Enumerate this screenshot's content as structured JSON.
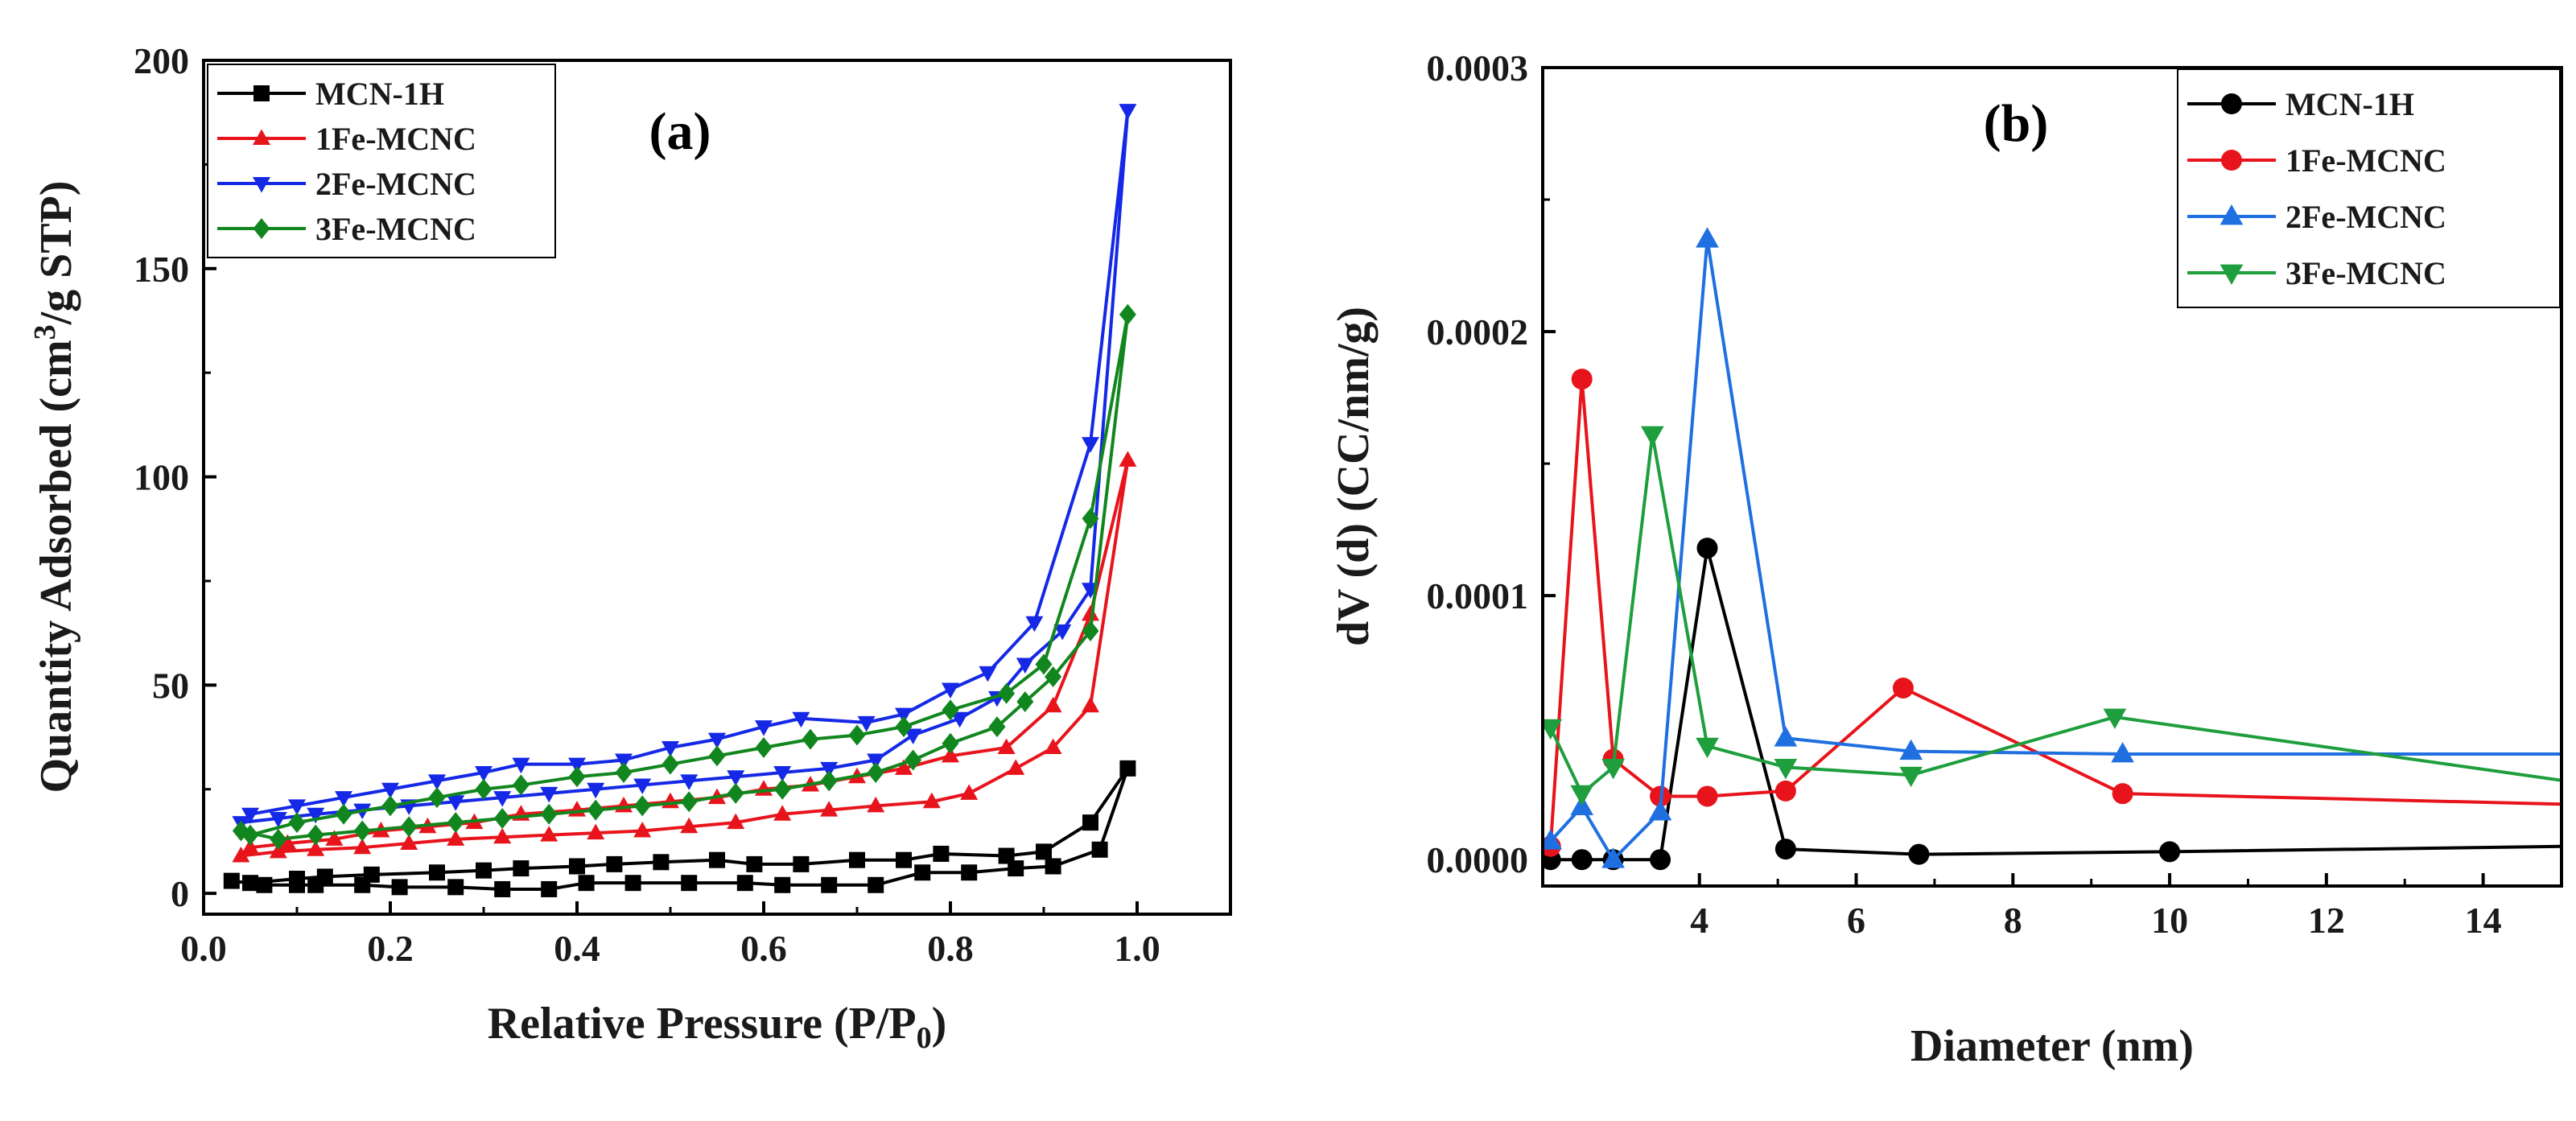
{
  "colors": {
    "black": "#000000",
    "red": "#e8141c",
    "blue": "#1428e6",
    "green": "#12861e",
    "blue_b": "#1f6fe0",
    "green_b": "#1e9e3c"
  },
  "chart_data": [
    {
      "type": "line",
      "panel_label": "(a)",
      "xlabel": "Relative Pressure (P/P",
      "xlabel_sub": "0",
      "xlabel_close": ")",
      "ylabel": "Quantity Adsorbed (cm",
      "ylabel_sup": "3",
      "ylabel_rest": "/g STP)",
      "xlim": [
        0.0,
        1.1
      ],
      "ylim": [
        -5,
        200
      ],
      "xticks": [
        0.0,
        0.2,
        0.4,
        0.6,
        0.8,
        1.0
      ],
      "xtick_labels": [
        "0.0",
        "0.2",
        "0.4",
        "0.6",
        "0.8",
        "1.0"
      ],
      "yticks": [
        0,
        50,
        100,
        150,
        200
      ],
      "ytick_labels": [
        "0",
        "50",
        "100",
        "150",
        "200"
      ],
      "legend_position": "top-left",
      "series": [
        {
          "name": "MCN-1H",
          "color": "black",
          "marker": "square",
          "x": [
            0.03,
            0.065,
            0.1,
            0.12,
            0.17,
            0.21,
            0.27,
            0.32,
            0.37,
            0.41,
            0.46,
            0.52,
            0.58,
            0.62,
            0.67,
            0.72,
            0.77,
            0.82,
            0.87,
            0.91,
            0.96,
            0.99,
            0.95,
            0.9,
            0.86,
            0.79,
            0.75,
            0.7,
            0.64,
            0.59,
            0.55,
            0.49,
            0.44,
            0.4,
            0.34,
            0.3,
            0.25,
            0.18,
            0.13,
            0.1,
            0.05
          ],
          "y": [
            3,
            2,
            2,
            2,
            2,
            1.5,
            1.5,
            1,
            1,
            2.5,
            2.5,
            2.5,
            2.5,
            2,
            2,
            2,
            5,
            5,
            6,
            6.5,
            10.5,
            30,
            17,
            10,
            9,
            9.5,
            8,
            8,
            7,
            7,
            8,
            7.5,
            7,
            6.5,
            6,
            5.5,
            5,
            4.5,
            4,
            3.5,
            2.5
          ]
        },
        {
          "name": "1Fe-MCNC",
          "color": "red",
          "marker": "triangle-up",
          "x": [
            0.04,
            0.08,
            0.12,
            0.17,
            0.22,
            0.27,
            0.32,
            0.37,
            0.42,
            0.47,
            0.52,
            0.57,
            0.62,
            0.67,
            0.72,
            0.78,
            0.82,
            0.87,
            0.91,
            0.95,
            0.99,
            0.95,
            0.91,
            0.86,
            0.8,
            0.75,
            0.7,
            0.65,
            0.6,
            0.55,
            0.5,
            0.45,
            0.4,
            0.34,
            0.29,
            0.24,
            0.19,
            0.14,
            0.09,
            0.05
          ],
          "y": [
            9,
            10,
            10.5,
            11,
            12,
            13,
            13.5,
            14,
            14.5,
            15,
            16,
            17,
            19,
            20,
            21,
            22,
            24,
            30,
            35,
            45,
            104,
            67,
            45,
            35,
            33,
            30,
            28,
            26,
            25,
            23,
            22,
            21,
            20,
            19,
            17,
            16,
            15,
            13,
            12,
            11
          ]
        },
        {
          "name": "2Fe-MCNC",
          "color": "blue",
          "marker": "triangle-down",
          "x": [
            0.04,
            0.08,
            0.12,
            0.17,
            0.22,
            0.27,
            0.32,
            0.37,
            0.42,
            0.47,
            0.52,
            0.57,
            0.62,
            0.67,
            0.72,
            0.76,
            0.81,
            0.85,
            0.88,
            0.92,
            0.95,
            0.99,
            0.95,
            0.89,
            0.84,
            0.8,
            0.75,
            0.71,
            0.64,
            0.6,
            0.55,
            0.5,
            0.45,
            0.4,
            0.34,
            0.3,
            0.25,
            0.2,
            0.15,
            0.1,
            0.05
          ],
          "y": [
            17,
            18,
            19,
            20,
            21,
            22,
            23,
            24,
            25,
            26,
            27,
            28,
            29,
            30,
            32,
            38,
            42,
            47,
            55,
            63,
            73,
            188,
            108,
            65,
            53,
            49,
            43,
            41,
            42,
            40,
            37,
            35,
            32,
            31,
            31,
            29,
            27,
            25,
            23,
            21,
            19
          ]
        },
        {
          "name": "3Fe-MCNC",
          "color": "green",
          "marker": "diamond",
          "x": [
            0.04,
            0.08,
            0.12,
            0.17,
            0.22,
            0.27,
            0.32,
            0.37,
            0.42,
            0.47,
            0.52,
            0.57,
            0.62,
            0.67,
            0.72,
            0.76,
            0.8,
            0.85,
            0.88,
            0.91,
            0.95,
            0.99,
            0.95,
            0.9,
            0.86,
            0.8,
            0.75,
            0.7,
            0.65,
            0.6,
            0.55,
            0.5,
            0.45,
            0.4,
            0.34,
            0.3,
            0.25,
            0.2,
            0.15,
            0.1,
            0.05
          ],
          "y": [
            15,
            13,
            14,
            15,
            16,
            17,
            18,
            19,
            20,
            21,
            22,
            24,
            25,
            27,
            29,
            32,
            36,
            40,
            46,
            52,
            63,
            139,
            90,
            55,
            48,
            44,
            40,
            38,
            37,
            35,
            33,
            31,
            29,
            28,
            26,
            25,
            23,
            21,
            19,
            17,
            14
          ]
        }
      ]
    },
    {
      "type": "line",
      "panel_label": "(b)",
      "xlabel": "Diameter (nm)",
      "ylabel": "dV (d) (CC/nm/g)",
      "xlim": [
        2.0,
        15.0
      ],
      "ylim": [
        -1e-05,
        0.0003
      ],
      "xticks": [
        4,
        6,
        8,
        10,
        12,
        14
      ],
      "xtick_labels": [
        "4",
        "6",
        "8",
        "10",
        "12",
        "14"
      ],
      "yticks": [
        0,
        0.0001,
        0.0002,
        0.0003
      ],
      "ytick_labels": [
        "0.0000",
        "0.0001",
        "0.0002",
        "0.0003"
      ],
      "legend_position": "top-right",
      "series": [
        {
          "name": "MCN-1H",
          "color": "black",
          "marker": "circle",
          "x": [
            2.1,
            2.5,
            2.9,
            3.5,
            4.1,
            5.1,
            6.8,
            10.0,
            15.0
          ],
          "y": [
            0.0,
            0.0,
            0.0,
            0.0,
            0.000118,
            4e-06,
            2e-06,
            3e-06,
            5e-06
          ]
        },
        {
          "name": "1Fe-MCNC",
          "color": "red",
          "marker": "circle",
          "x": [
            2.1,
            2.5,
            2.9,
            3.5,
            4.1,
            5.1,
            6.6,
            9.4,
            15.0
          ],
          "y": [
            5e-06,
            0.000182,
            3.8e-05,
            2.4e-05,
            2.4e-05,
            2.6e-05,
            6.5e-05,
            2.5e-05,
            2.1e-05
          ]
        },
        {
          "name": "2Fe-MCNC",
          "color": "blue_b",
          "marker": "triangle-up",
          "x": [
            2.1,
            2.5,
            2.9,
            3.5,
            4.1,
            5.1,
            6.7,
            9.4,
            15.0
          ],
          "y": [
            7e-06,
            2e-05,
            0.0,
            1.8e-05,
            0.000235,
            4.6e-05,
            4.1e-05,
            4e-05,
            4e-05
          ]
        },
        {
          "name": "3Fe-MCNC",
          "color": "green_b",
          "marker": "triangle-down",
          "x": [
            2.1,
            2.5,
            2.9,
            3.4,
            4.1,
            5.1,
            6.7,
            9.3,
            15.0
          ],
          "y": [
            5e-05,
            2.5e-05,
            3.5e-05,
            0.000161,
            4.3e-05,
            3.5e-05,
            3.2e-05,
            5.4e-05,
            3e-05
          ]
        }
      ]
    }
  ]
}
